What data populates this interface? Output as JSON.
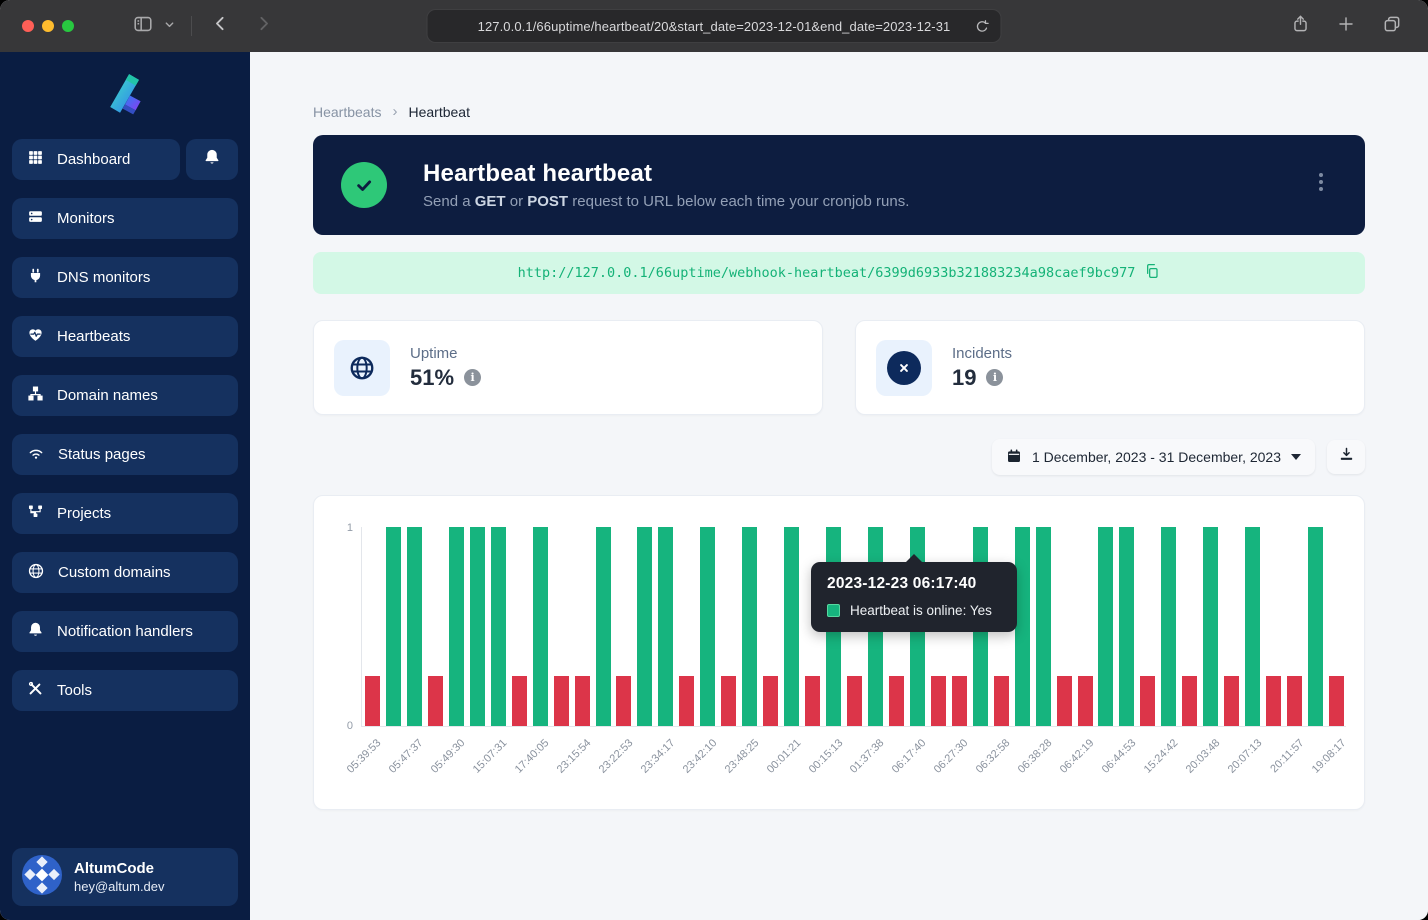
{
  "browser": {
    "url": "127.0.0.1/66uptime/heartbeat/20&start_date=2023-12-01&end_date=2023-12-31"
  },
  "sidebar": {
    "items": [
      {
        "label": "Dashboard",
        "icon": "dashboard-grid-icon"
      },
      {
        "label": "Monitors",
        "icon": "server-icon"
      },
      {
        "label": "DNS monitors",
        "icon": "plug-icon"
      },
      {
        "label": "Heartbeats",
        "icon": "heartbeat-icon"
      },
      {
        "label": "Domain names",
        "icon": "sitemap-icon"
      },
      {
        "label": "Status pages",
        "icon": "wifi-icon"
      },
      {
        "label": "Projects",
        "icon": "diagram-icon"
      },
      {
        "label": "Custom domains",
        "icon": "globe-icon"
      },
      {
        "label": "Notification handlers",
        "icon": "bell-icon"
      },
      {
        "label": "Tools",
        "icon": "tools-icon"
      }
    ],
    "user": {
      "name": "AltumCode",
      "email": "hey@altum.dev"
    }
  },
  "breadcrumb": {
    "parent": "Heartbeats",
    "current": "Heartbeat"
  },
  "header": {
    "title": "Heartbeat heartbeat",
    "desc": [
      "Send a ",
      "GET",
      " or ",
      "POST",
      " request to URL below each time your cronjob runs."
    ]
  },
  "webhook": {
    "url": "http://127.0.0.1/66uptime/webhook-heartbeat/6399d6933b321883234a98caef9bc977"
  },
  "stats": {
    "uptime": {
      "label": "Uptime",
      "value": "51%"
    },
    "incidents": {
      "label": "Incidents",
      "value": "19"
    }
  },
  "daterange": {
    "value": "1 December, 2023 - 31 December, 2023"
  },
  "chart_data": {
    "type": "bar",
    "ylabel": "",
    "xlabel": "",
    "ylim": [
      0,
      1
    ],
    "yticks": [
      0,
      1
    ],
    "grid": false,
    "legend": "none",
    "tick_labels": [
      "05:39:53",
      "05:47:37",
      "05:49:30",
      "15:07:31",
      "17:40:05",
      "23:15:54",
      "23:22:53",
      "23:34:17",
      "23:42:10",
      "23:48:25",
      "00:01:21",
      "00:15:13",
      "01:37:38",
      "06:17:40",
      "06:27:30",
      "06:32:58",
      "06:38:28",
      "06:42:19",
      "06:44:53",
      "15:24:42",
      "20:03:48",
      "20:07:13",
      "20:11:57",
      "19:08:17"
    ],
    "tick_every": 2,
    "online_sequence": [
      0,
      1,
      1,
      0,
      1,
      1,
      1,
      0,
      1,
      0,
      0,
      1,
      0,
      1,
      1,
      0,
      1,
      0,
      1,
      0,
      1,
      0,
      1,
      0,
      1,
      0,
      1,
      0,
      0,
      1,
      0,
      1,
      1,
      0,
      0,
      1,
      1,
      0,
      1,
      0,
      1,
      0,
      1,
      0,
      0,
      1,
      0
    ],
    "offline_bar_height": 0.25,
    "colors": {
      "online": "#16b47e",
      "offline": "#dc3549"
    },
    "tooltip": {
      "title": "2023-12-23 06:17:40",
      "label": "Heartbeat is online: Yes",
      "bar_index": 26
    }
  }
}
